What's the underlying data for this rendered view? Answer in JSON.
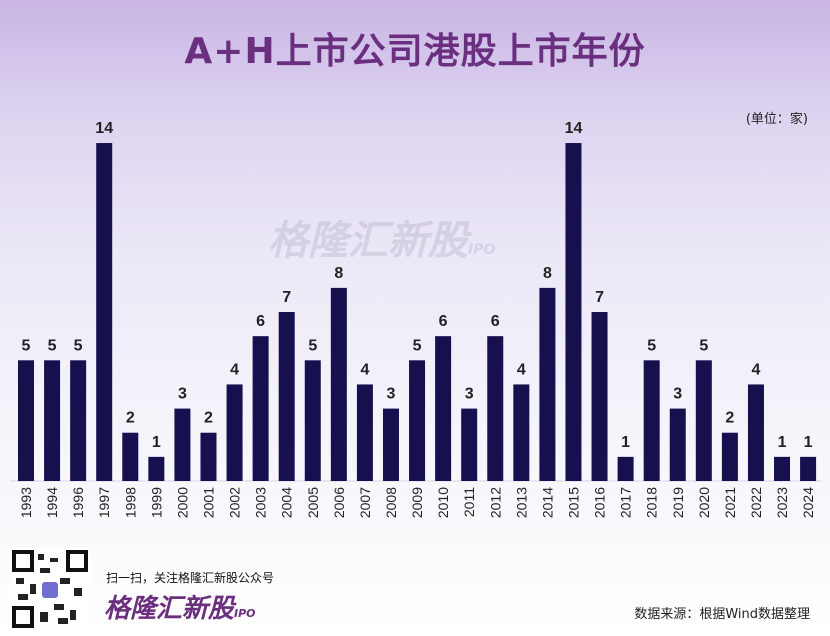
{
  "chart_data": {
    "type": "bar",
    "title": "A+H上市公司港股上市年份",
    "unit_label": "(单位：家)",
    "categories": [
      "1993",
      "1994",
      "1996",
      "1997",
      "1998",
      "1999",
      "2000",
      "2001",
      "2002",
      "2003",
      "2004",
      "2005",
      "2006",
      "2007",
      "2008",
      "2009",
      "2010",
      "2011",
      "2012",
      "2013",
      "2014",
      "2015",
      "2016",
      "2017",
      "2018",
      "2019",
      "2020",
      "2021",
      "2022",
      "2023",
      "2024"
    ],
    "values": [
      5,
      5,
      5,
      14,
      2,
      1,
      3,
      2,
      4,
      6,
      7,
      5,
      8,
      4,
      3,
      5,
      6,
      3,
      6,
      4,
      8,
      14,
      7,
      1,
      5,
      3,
      5,
      2,
      4,
      1,
      1
    ],
    "xlabel": "",
    "ylabel": "",
    "ylim": [
      0,
      14
    ],
    "grid": false,
    "bar_color": "#16104f"
  },
  "watermark": {
    "name": "格隆汇新股",
    "suffix": "IPO"
  },
  "footer": {
    "follow_text": "扫一扫，关注格隆汇新股公众号",
    "brand": "格隆汇新股",
    "brand_suffix": "IPO",
    "source": "数据来源：根据Wind数据整理"
  }
}
